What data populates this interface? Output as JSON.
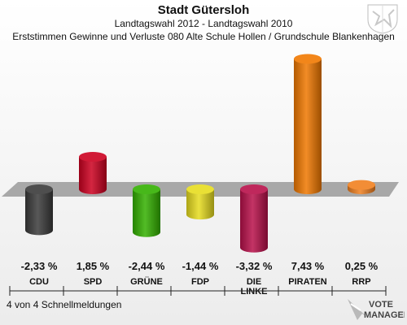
{
  "header": {
    "title": "Stadt Gütersloh",
    "subtitle": "Landtagswahl 2012 - Landtagswahl 2010",
    "description": "Erststimmen Gewinne und Verluste 080 Alte Schule Hollen / Grundschule Blankenhagen"
  },
  "footer": {
    "text": "4 von 4 Schnellmeldungen"
  },
  "logo": {
    "line1": "VOTE",
    "line2": "MANAGER"
  },
  "chart_data": {
    "type": "bar",
    "title": "Erststimmen Gewinne und Verluste 080 Alte Schule Hollen / Grundschule Blankenhagen",
    "categories": [
      "CDU",
      "SPD",
      "GRÜNE",
      "FDP",
      "DIE LINKE",
      "PIRATEN",
      "RRP"
    ],
    "values": [
      -2.33,
      1.85,
      -2.44,
      -1.44,
      -3.32,
      7.43,
      0.25
    ],
    "value_labels": [
      "-2,33 %",
      "1,85 %",
      "-2,44 %",
      "-1,44 %",
      "-3,32 %",
      "7,43 %",
      "0,25 %"
    ],
    "colors": [
      "#3a3a3a",
      "#cc0020",
      "#33b000",
      "#e6dc1e",
      "#b8104a",
      "#f07800",
      "#f08020"
    ],
    "unit": "%",
    "grid": false,
    "legend": "none"
  }
}
